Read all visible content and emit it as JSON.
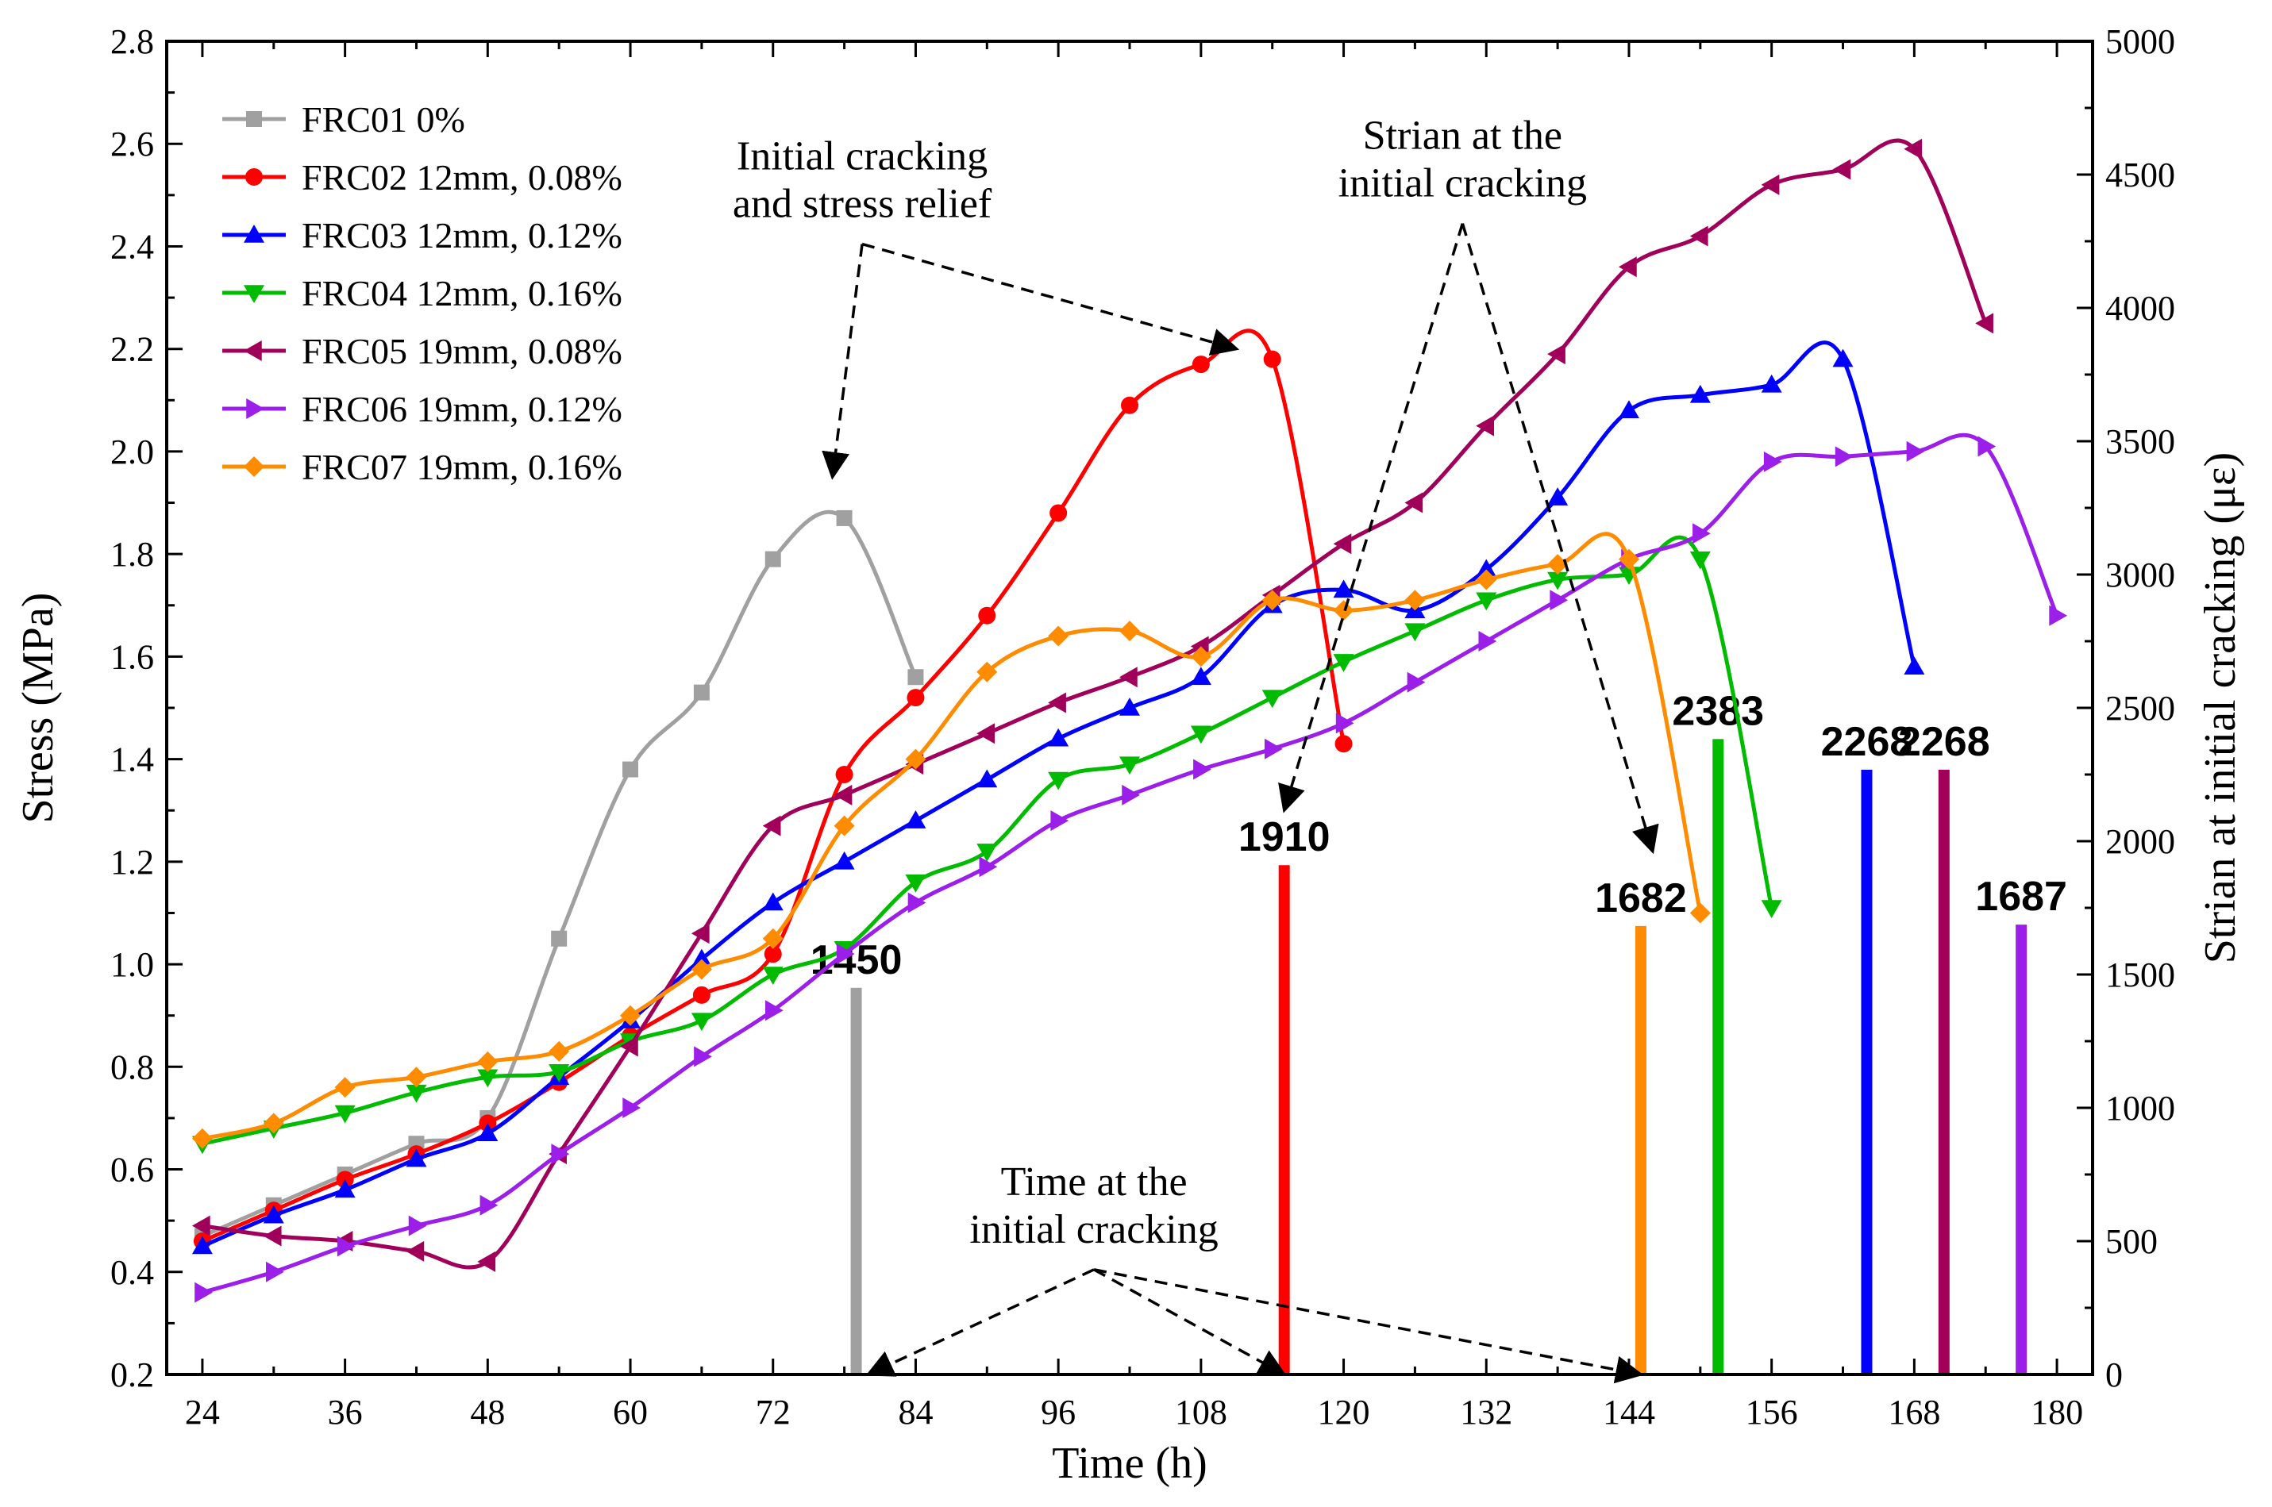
{
  "chart_data": {
    "type": "line",
    "xlabel": "Time (h)",
    "ylabel": "Stress (MPa)",
    "y2label": "Strian at initial cracking (με)",
    "xlim": [
      21,
      183
    ],
    "ylim": [
      0.2,
      2.8
    ],
    "y2lim": [
      0,
      5000
    ],
    "xticks": [
      24,
      36,
      48,
      60,
      72,
      84,
      96,
      108,
      120,
      132,
      144,
      156,
      168,
      180
    ],
    "yticks": [
      0.2,
      0.4,
      0.6,
      0.8,
      1.0,
      1.2,
      1.4,
      1.6,
      1.8,
      2.0,
      2.2,
      2.4,
      2.6,
      2.8
    ],
    "y2ticks": [
      0,
      500,
      1000,
      1500,
      2000,
      2500,
      3000,
      3500,
      4000,
      4500,
      5000
    ],
    "legend_position": "top-left",
    "series": [
      {
        "name": "FRC01 0%",
        "color": "#a0a0a0",
        "marker": "square",
        "x": [
          24,
          30,
          36,
          42,
          48,
          54,
          60,
          66,
          72,
          78,
          84
        ],
        "y": [
          0.47,
          0.53,
          0.59,
          0.65,
          0.7,
          1.05,
          1.38,
          1.53,
          1.79,
          1.87,
          1.56
        ]
      },
      {
        "name": "FRC02 12mm, 0.08%",
        "color": "#ff0000",
        "marker": "circle",
        "x": [
          24,
          30,
          36,
          42,
          48,
          54,
          60,
          66,
          72,
          78,
          84,
          90,
          96,
          102,
          108,
          114,
          120
        ],
        "y": [
          0.46,
          0.52,
          0.58,
          0.63,
          0.69,
          0.77,
          0.86,
          0.94,
          1.02,
          1.37,
          1.52,
          1.68,
          1.88,
          2.09,
          2.17,
          2.18,
          1.43
        ]
      },
      {
        "name": "FRC03 12mm, 0.12%",
        "color": "#0000ff",
        "marker": "triangle-up",
        "x": [
          24,
          30,
          36,
          42,
          48,
          54,
          60,
          66,
          72,
          78,
          84,
          90,
          96,
          102,
          108,
          114,
          120,
          126,
          132,
          138,
          144,
          150,
          156,
          162,
          168
        ],
        "y": [
          0.45,
          0.51,
          0.56,
          0.62,
          0.67,
          0.78,
          0.89,
          1.01,
          1.12,
          1.2,
          1.28,
          1.36,
          1.44,
          1.5,
          1.56,
          1.7,
          1.73,
          1.69,
          1.77,
          1.91,
          2.08,
          2.11,
          2.13,
          2.18,
          1.58
        ]
      },
      {
        "name": "FRC04 12mm, 0.16%",
        "color": "#00bb00",
        "marker": "triangle-down",
        "x": [
          24,
          30,
          36,
          42,
          48,
          54,
          60,
          66,
          72,
          78,
          84,
          90,
          96,
          102,
          108,
          114,
          120,
          126,
          132,
          138,
          144,
          150,
          156
        ],
        "y": [
          0.65,
          0.68,
          0.71,
          0.75,
          0.78,
          0.79,
          0.85,
          0.89,
          0.98,
          1.03,
          1.16,
          1.22,
          1.36,
          1.39,
          1.45,
          1.52,
          1.59,
          1.65,
          1.71,
          1.75,
          1.76,
          1.79,
          1.11
        ]
      },
      {
        "name": "FRC05 19mm, 0.08%",
        "color": "#a0005a",
        "marker": "triangle-left",
        "x": [
          24,
          30,
          36,
          42,
          48,
          54,
          60,
          66,
          72,
          78,
          84,
          90,
          96,
          102,
          108,
          114,
          120,
          126,
          132,
          138,
          144,
          150,
          156,
          162,
          168,
          174
        ],
        "y": [
          0.49,
          0.47,
          0.46,
          0.44,
          0.42,
          0.63,
          0.84,
          1.06,
          1.27,
          1.33,
          1.39,
          1.45,
          1.51,
          1.56,
          1.62,
          1.72,
          1.82,
          1.9,
          2.05,
          2.19,
          2.36,
          2.42,
          2.52,
          2.55,
          2.59,
          2.25
        ]
      },
      {
        "name": "FRC06 19mm, 0.12%",
        "color": "#9b1fe8",
        "marker": "triangle-right",
        "x": [
          24,
          30,
          36,
          42,
          48,
          54,
          60,
          66,
          72,
          78,
          84,
          90,
          96,
          102,
          108,
          114,
          120,
          126,
          132,
          138,
          144,
          150,
          156,
          162,
          168,
          174,
          180
        ],
        "y": [
          0.36,
          0.4,
          0.45,
          0.49,
          0.53,
          0.63,
          0.72,
          0.82,
          0.91,
          1.02,
          1.12,
          1.19,
          1.28,
          1.33,
          1.38,
          1.42,
          1.47,
          1.55,
          1.63,
          1.71,
          1.79,
          1.84,
          1.98,
          1.99,
          2.0,
          2.01,
          1.68
        ]
      },
      {
        "name": "FRC07 19mm, 0.16%",
        "color": "#ff8c00",
        "marker": "diamond",
        "x": [
          24,
          30,
          36,
          42,
          48,
          54,
          60,
          66,
          72,
          78,
          84,
          90,
          96,
          102,
          108,
          114,
          120,
          126,
          132,
          138,
          144,
          150
        ],
        "y": [
          0.66,
          0.69,
          0.76,
          0.78,
          0.81,
          0.83,
          0.9,
          0.99,
          1.05,
          1.27,
          1.4,
          1.57,
          1.64,
          1.65,
          1.6,
          1.71,
          1.69,
          1.71,
          1.75,
          1.78,
          1.79,
          1.1
        ]
      }
    ],
    "cracking_bars": [
      {
        "series": "FRC01 0%",
        "time": 79,
        "strain": 1450,
        "label": "1450",
        "color": "#a0a0a0"
      },
      {
        "series": "FRC02 12mm, 0.08%",
        "time": 115,
        "strain": 1910,
        "label": "1910",
        "color": "#ff0000"
      },
      {
        "series": "FRC07 19mm, 0.16%",
        "time": 145,
        "strain": 1682,
        "label": "1682",
        "color": "#ff8c00"
      },
      {
        "series": "FRC04 12mm, 0.16%",
        "time": 151.5,
        "strain": 2383,
        "label": "2383",
        "color": "#00bb00"
      },
      {
        "series": "FRC03 12mm, 0.12%",
        "time": 164,
        "strain": 2268,
        "label": "2268",
        "color": "#0000ff"
      },
      {
        "series": "FRC05 19mm, 0.08%",
        "time": 170.5,
        "strain": 2268,
        "label": "2268",
        "color": "#a0005a"
      },
      {
        "series": "FRC06 19mm, 0.12%",
        "time": 177,
        "strain": 1687,
        "label": "1687",
        "color": "#9b1fe8"
      }
    ],
    "annotations": [
      {
        "lines": [
          "Initial cracking",
          "and stress relief"
        ],
        "anchor_x": 79.5,
        "anchor_y": 2.55,
        "arrows_to": [
          {
            "x": 77,
            "y": 1.95
          },
          {
            "x": 111,
            "y": 2.2
          }
        ]
      },
      {
        "lines": [
          "Strian at the",
          "initial cracking"
        ],
        "anchor_x": 130,
        "anchor_y": 2.59,
        "arrows_to": [
          {
            "x": 115,
            "y": 1.3
          },
          {
            "x": 146,
            "y": 1.22
          }
        ]
      },
      {
        "lines": [
          "Time at the",
          "initial cracking"
        ],
        "anchor_x": 99,
        "anchor_y": 0.55,
        "arrows_to": [
          {
            "x": 80,
            "y": 0.2
          },
          {
            "x": 115,
            "y": 0.2
          },
          {
            "x": 145,
            "y": 0.2
          }
        ]
      }
    ]
  }
}
